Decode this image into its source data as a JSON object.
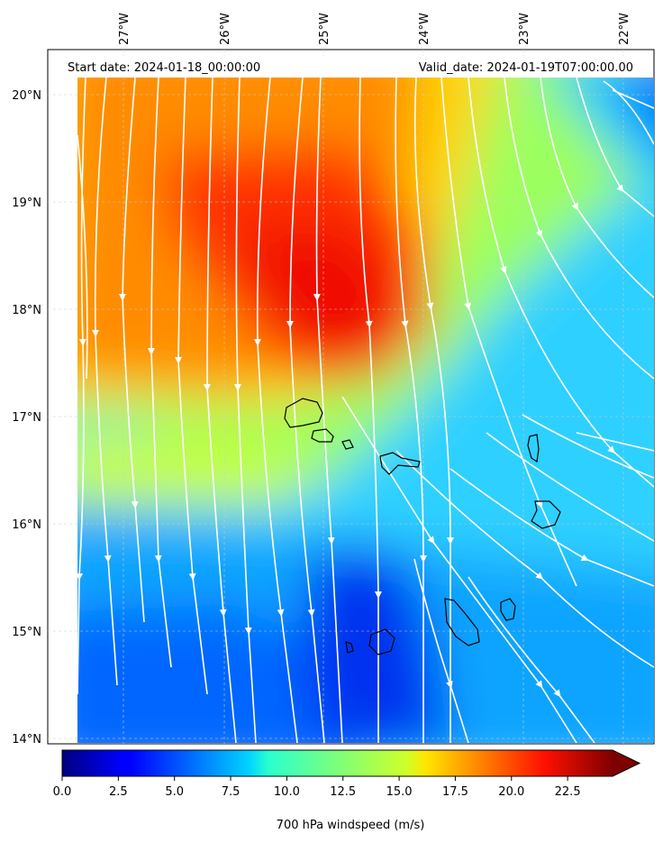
{
  "map": {
    "start_label": "Start date: 2024-01-18_00:00:00",
    "valid_label": "Valid_date: 2024-01-19T07:00:00.00",
    "lon_ticks": [
      "27°W",
      "26°W",
      "25°W",
      "24°W",
      "23°W",
      "22°W"
    ],
    "lat_ticks": [
      "20°N",
      "19°N",
      "18°N",
      "17°N",
      "16°N",
      "15°N",
      "14°N"
    ],
    "lon_range": [
      -27.6,
      -21.7
    ],
    "lat_range": [
      13.95,
      20.4
    ]
  },
  "colorbar": {
    "title": "700 hPa windspeed (m/s)",
    "ticks": [
      "0.0",
      "2.5",
      "5.0",
      "7.5",
      "10.0",
      "12.5",
      "15.0",
      "17.5",
      "20.0",
      "22.5"
    ],
    "range": [
      0,
      24.5
    ],
    "extend": "max",
    "colormap": "jet"
  },
  "colors": {
    "streamline": "#ffffff",
    "coastline": "#000000",
    "gridline": "#cccccc"
  }
}
